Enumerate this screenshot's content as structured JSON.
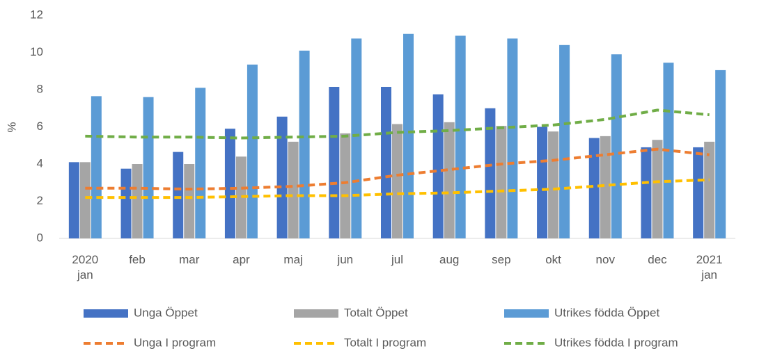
{
  "chart_data": {
    "type": "combo",
    "y_label": "%",
    "categories": [
      "2020 jan",
      "feb",
      "mar",
      "apr",
      "maj",
      "jun",
      "jul",
      "aug",
      "sep",
      "okt",
      "nov",
      "dec",
      "2021 jan"
    ],
    "ylim": [
      0,
      12
    ],
    "yticks": [
      0,
      2,
      4,
      6,
      8,
      10,
      12
    ],
    "grid": false,
    "series": [
      {
        "name": "Unga Öppet",
        "type": "bar",
        "color": "#4472c4",
        "values": [
          4.1,
          3.75,
          4.65,
          5.9,
          6.55,
          8.15,
          8.15,
          7.75,
          7.0,
          6.0,
          5.4,
          4.9,
          4.9
        ]
      },
      {
        "name": "Totalt Öppet",
        "type": "bar",
        "color": "#a5a5a5",
        "values": [
          4.1,
          4.0,
          4.0,
          4.4,
          5.2,
          5.65,
          6.15,
          6.25,
          6.05,
          5.75,
          5.5,
          5.3,
          5.2
        ]
      },
      {
        "name": "Utrikes födda Öppet",
        "type": "bar",
        "color": "#5b9bd5",
        "values": [
          7.65,
          7.6,
          8.1,
          9.35,
          10.1,
          10.75,
          11.0,
          10.9,
          10.75,
          10.4,
          9.9,
          9.45,
          9.05
        ]
      },
      {
        "name": "Unga I program",
        "type": "line",
        "color": "#ed7d31",
        "values": [
          2.7,
          2.7,
          2.65,
          2.7,
          2.8,
          3.0,
          3.4,
          3.7,
          4.0,
          4.2,
          4.5,
          4.8,
          4.5
        ]
      },
      {
        "name": "Totalt I program",
        "type": "line",
        "color": "#ffc000",
        "values": [
          2.2,
          2.2,
          2.2,
          2.25,
          2.3,
          2.3,
          2.4,
          2.45,
          2.55,
          2.65,
          2.85,
          3.05,
          3.15
        ]
      },
      {
        "name": "Utrikes födda I program",
        "type": "line",
        "color": "#70ad47",
        "values": [
          5.5,
          5.45,
          5.45,
          5.4,
          5.45,
          5.5,
          5.7,
          5.8,
          5.95,
          6.1,
          6.4,
          6.9,
          6.65
        ]
      }
    ]
  }
}
